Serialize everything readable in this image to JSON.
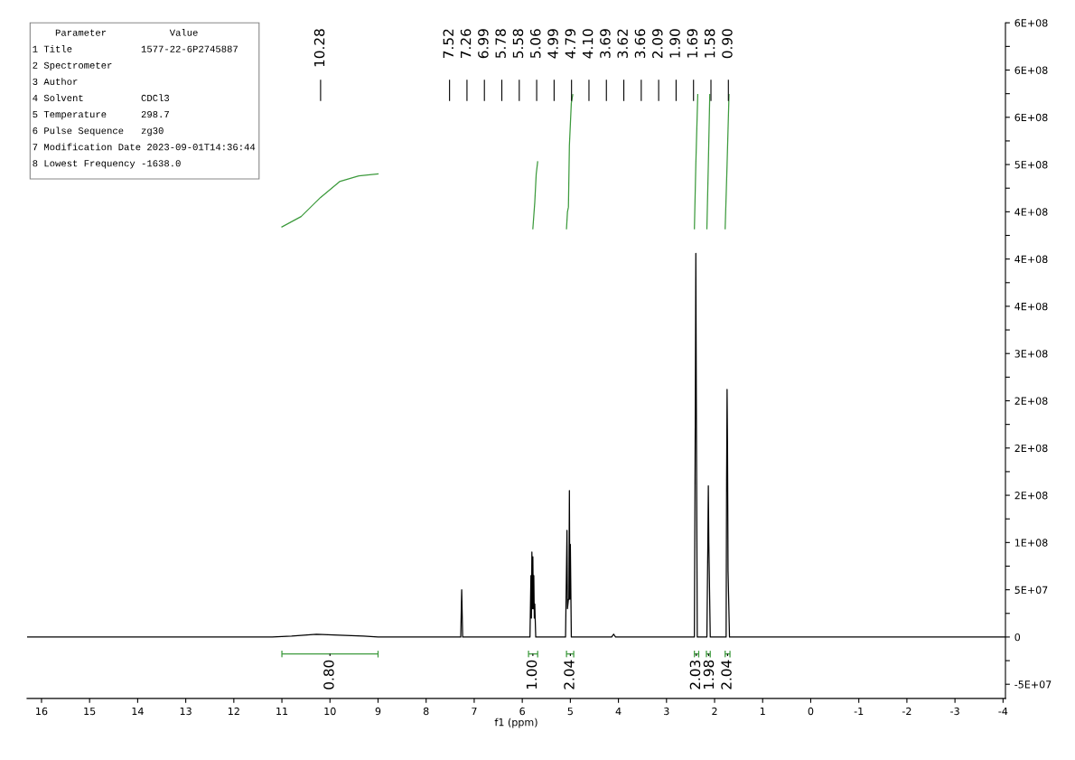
{
  "chart_data": {
    "type": "line",
    "xlabel": "f1 (ppm)",
    "xlim": [
      16.3,
      -4.05
    ],
    "xticks": [
      16,
      15,
      14,
      13,
      12,
      11,
      10,
      9,
      8,
      7,
      6,
      5,
      4,
      3,
      2,
      1,
      0,
      -1,
      -2,
      -3,
      -4
    ],
    "ylim": [
      -65000000,
      650000000
    ],
    "yticks": [
      {
        "value": -50000000,
        "label": "-5E+07"
      },
      {
        "value": -25000000,
        "label": null
      },
      {
        "value": 0,
        "label": "0"
      },
      {
        "value": 25000000,
        "label": null
      },
      {
        "value": 50000000,
        "label": "5E+07"
      },
      {
        "value": 75000000,
        "label": null
      },
      {
        "value": 100000000,
        "label": "1E+08"
      },
      {
        "value": 125000000,
        "label": null
      },
      {
        "value": 150000000,
        "label": "2E+08"
      },
      {
        "value": 175000000,
        "label": null
      },
      {
        "value": 200000000,
        "label": "2E+08"
      },
      {
        "value": 225000000,
        "label": null
      },
      {
        "value": 250000000,
        "label": "2E+08"
      },
      {
        "value": 275000000,
        "label": null
      },
      {
        "value": 300000000,
        "label": "3E+08"
      },
      {
        "value": 325000000,
        "label": null
      },
      {
        "value": 350000000,
        "label": "4E+08"
      },
      {
        "value": 375000000,
        "label": null
      },
      {
        "value": 400000000,
        "label": "4E+08"
      },
      {
        "value": 425000000,
        "label": null
      },
      {
        "value": 450000000,
        "label": "4E+08"
      },
      {
        "value": 475000000,
        "label": null
      },
      {
        "value": 500000000,
        "label": "5E+08"
      },
      {
        "value": 525000000,
        "label": null
      },
      {
        "value": 550000000,
        "label": "6E+08"
      },
      {
        "value": 575000000,
        "label": null
      },
      {
        "value": 600000000,
        "label": "6E+08"
      },
      {
        "value": 625000000,
        "label": null
      },
      {
        "value": 650000000,
        "label": "6E+08"
      }
    ],
    "grid": false,
    "series": [
      {
        "color": "#000000",
        "x": [
          16.3,
          11.2,
          10.8,
          10.28,
          9.8,
          9.3,
          9.0,
          7.52,
          7.28,
          7.26,
          7.24,
          6.99,
          5.84,
          5.82,
          5.81,
          5.8,
          5.79,
          5.78,
          5.77,
          5.76,
          5.75,
          5.74,
          5.72,
          5.58,
          5.1,
          5.07,
          5.06,
          5.04,
          5.03,
          5.02,
          5.01,
          5.0,
          4.99,
          4.98,
          4.79,
          4.14,
          4.1,
          4.06,
          3.69,
          3.66,
          3.62,
          2.42,
          2.4,
          2.39,
          2.38,
          2.36,
          2.16,
          2.14,
          2.13,
          2.12,
          2.09,
          1.9,
          1.76,
          1.75,
          1.74,
          1.73,
          1.72,
          1.69,
          1.58,
          0.9,
          -4.05
        ],
        "values": [
          0,
          0,
          1000000,
          3000000,
          2000000,
          1000000,
          0,
          0,
          0,
          50000000,
          0,
          0,
          0,
          65000000,
          20000000,
          90000000,
          30000000,
          85000000,
          30000000,
          65000000,
          20000000,
          35000000,
          0,
          0,
          0,
          113000000,
          30000000,
          40000000,
          40000000,
          155000000,
          40000000,
          98000000,
          50000000,
          0,
          0,
          0,
          3000000,
          0,
          0,
          0,
          0,
          0,
          255000000,
          406000000,
          255000000,
          0,
          0,
          100000000,
          160000000,
          100000000,
          0,
          0,
          0,
          165000000,
          262000000,
          194000000,
          70000000,
          0,
          0,
          0,
          0
        ]
      },
      {
        "color": "#3c9a3c",
        "x": [
          11.0,
          10.6,
          10.2,
          9.8,
          9.4,
          9.0
        ],
        "values": [
          434000000,
          445000000,
          465000000,
          482000000,
          488000000,
          490000000
        ]
      },
      {
        "color": "#3c9a3c",
        "x": [
          5.78,
          5.74,
          5.71,
          5.68
        ],
        "values": [
          432000000,
          460000000,
          490000000,
          503000000
        ]
      },
      {
        "color": "#3c9a3c",
        "x": [
          5.08,
          5.06,
          5.04,
          5.02,
          4.98,
          4.95
        ],
        "values": [
          432000000,
          450000000,
          455000000,
          520000000,
          565000000,
          574000000
        ]
      },
      {
        "color": "#3c9a3c",
        "x": [
          2.42,
          2.39,
          2.35
        ],
        "values": [
          432000000,
          500000000,
          574000000
        ]
      },
      {
        "color": "#3c9a3c",
        "x": [
          2.16,
          2.13,
          2.1
        ],
        "values": [
          432000000,
          500000000,
          574000000
        ]
      },
      {
        "color": "#3c9a3c",
        "x": [
          1.78,
          1.74,
          1.7
        ],
        "values": [
          432000000,
          500000000,
          574000000
        ]
      },
      {
        "color": "#3c9a3c",
        "x": [
          11.0,
          11.0,
          11.0,
          10.0,
          9.0,
          9.0,
          9.0
        ],
        "values": [
          -15000000,
          -21000000,
          -18000000,
          -18000000,
          -18000000,
          -15000000,
          -21000000
        ]
      },
      {
        "color": "#3c9a3c",
        "x": [
          5.87,
          5.87,
          5.87,
          5.78,
          5.68,
          5.68,
          5.68
        ],
        "values": [
          -15000000,
          -21000000,
          -18000000,
          -18000000,
          -18000000,
          -15000000,
          -21000000
        ]
      },
      {
        "color": "#3c9a3c",
        "x": [
          5.08,
          5.08,
          5.08,
          5.0,
          4.93,
          4.93,
          4.93
        ],
        "values": [
          -15000000,
          -21000000,
          -18000000,
          -18000000,
          -18000000,
          -15000000,
          -21000000
        ]
      },
      {
        "color": "#3c9a3c",
        "x": [
          2.42,
          2.42,
          2.42,
          2.38,
          2.33,
          2.33,
          2.33
        ],
        "values": [
          -15000000,
          -21000000,
          -18000000,
          -18000000,
          -18000000,
          -15000000,
          -21000000
        ]
      },
      {
        "color": "#3c9a3c",
        "x": [
          2.17,
          2.17,
          2.17,
          2.13,
          2.09,
          2.09,
          2.09
        ],
        "values": [
          -15000000,
          -21000000,
          -18000000,
          -18000000,
          -18000000,
          -15000000,
          -21000000
        ]
      },
      {
        "color": "#3c9a3c",
        "x": [
          1.78,
          1.78,
          1.78,
          1.73,
          1.68,
          1.68,
          1.68
        ],
        "values": [
          -15000000,
          -21000000,
          -18000000,
          -18000000,
          -18000000,
          -15000000,
          -21000000
        ]
      }
    ],
    "annotations": [
      "    Parameter           Value",
      "1 Title            1577-22-6P2745887",
      "2 Spectrometer",
      "3 Author",
      "4 Solvent          CDCl3",
      "5 Temperature      298.7",
      "6 Pulse Sequence   zg30",
      "7 Modification Date 2023-09-01T14:36:44",
      "8 Lowest Frequency -1638.0",
      "10.28",
      "7.52",
      "7.26",
      "6.99",
      "5.78",
      "5.58",
      "5.06",
      "4.99",
      "4.79",
      "4.10",
      "3.69",
      "3.62",
      "3.66",
      "2.09",
      "1.90",
      "1.69",
      "1.58",
      "0.90",
      {
        "text": "0.80",
        "x": 10.0,
        "y": -18000000
      },
      {
        "text": "1.00",
        "x": 5.78,
        "y": -18000000
      },
      {
        "text": "2.04",
        "x": 5.0,
        "y": -18000000
      },
      {
        "text": "2.03",
        "x": 2.38,
        "y": -18000000
      },
      {
        "text": "1.98",
        "x": 2.13,
        "y": -18000000
      },
      {
        "text": "2.04",
        "x": 1.73,
        "y": -18000000
      }
    ]
  }
}
